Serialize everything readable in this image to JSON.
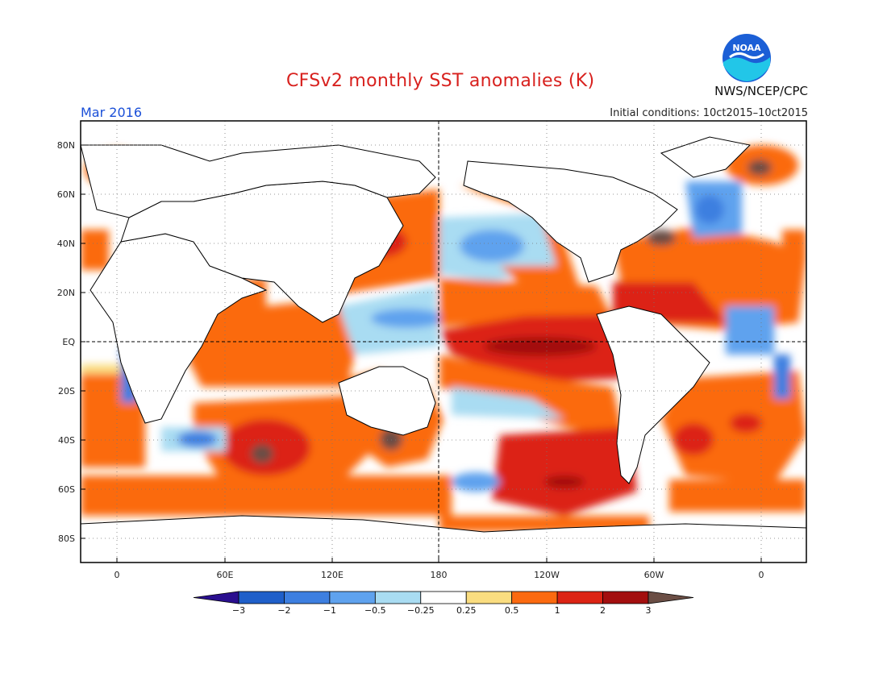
{
  "title": "CFSv2 monthly SST anomalies (K)",
  "period": "Mar 2016",
  "initial_conditions": "Initial conditions: 10ct2015–10ct2015",
  "agency": "NWS/NCEP/CPC",
  "logo": {
    "text": "NOAA",
    "icon": "noaa-logo-icon"
  },
  "lat_labels": [
    "80N",
    "60N",
    "40N",
    "20N",
    "EQ",
    "20S",
    "40S",
    "60S",
    "80S"
  ],
  "lon_labels": [
    "0",
    "60E",
    "120E",
    "180",
    "120W",
    "60W",
    "0"
  ],
  "colorbar": {
    "labels": [
      "−3",
      "−2",
      "−1",
      "−0.5",
      "−0.25",
      "0.25",
      "0.5",
      "1",
      "2",
      "3"
    ],
    "colors": [
      "#2a0f8f",
      "#1f5fc9",
      "#3d7fe0",
      "#5fa2ee",
      "#a9dcf2",
      "#ffffff",
      "#fadd80",
      "#fb6a10",
      "#dc2414",
      "#a30f0f",
      "#6b4e45"
    ]
  },
  "map_palette": {
    "ocean_neutral": "#ffffff",
    "land": "#ffffff",
    "coast": "#000000"
  }
}
